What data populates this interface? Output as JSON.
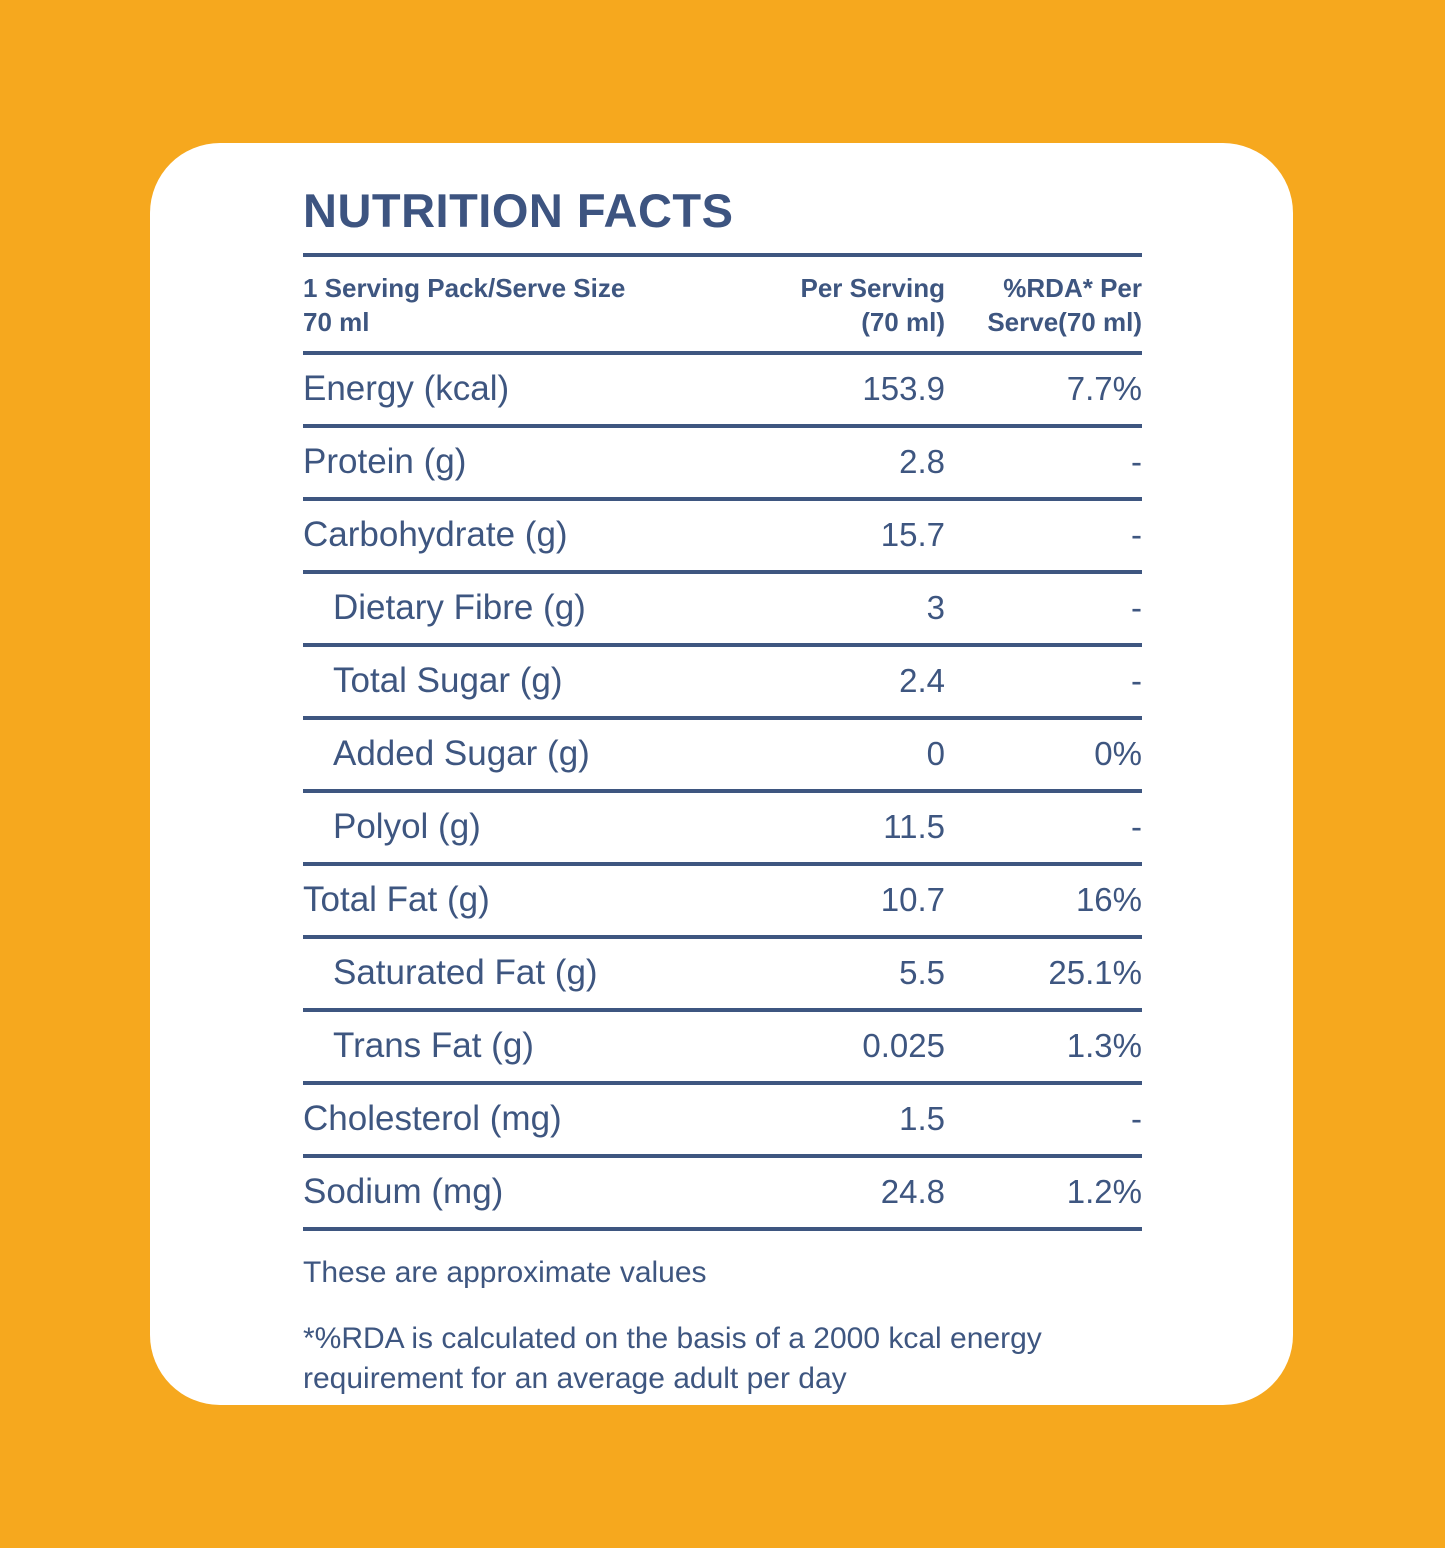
{
  "colors": {
    "background": "#F6A81E",
    "card": "#FFFFFF",
    "text": "#3E5680"
  },
  "title": "NUTRITION FACTS",
  "table": {
    "header": {
      "serving_info_line1": "1 Serving Pack/Serve Size",
      "serving_info_line2": "70 ml",
      "per_serving_line1": "Per Serving",
      "per_serving_line2": "(70 ml)",
      "rda_line1": "%RDA* Per",
      "rda_line2": "Serve(70 ml)"
    },
    "rows": [
      {
        "label": "Energy (kcal)",
        "per_serving": "153.9",
        "rda": "7.7%",
        "indent": false
      },
      {
        "label": "Protein (g)",
        "per_serving": "2.8",
        "rda": "-",
        "indent": false
      },
      {
        "label": "Carbohydrate (g)",
        "per_serving": "15.7",
        "rda": "-",
        "indent": false
      },
      {
        "label": "Dietary Fibre (g)",
        "per_serving": "3",
        "rda": "-",
        "indent": true
      },
      {
        "label": "Total Sugar (g)",
        "per_serving": "2.4",
        "rda": "-",
        "indent": true
      },
      {
        "label": "Added Sugar (g)",
        "per_serving": "0",
        "rda": "0%",
        "indent": true
      },
      {
        "label": "Polyol (g)",
        "per_serving": "11.5",
        "rda": "-",
        "indent": true
      },
      {
        "label": "Total Fat (g)",
        "per_serving": "10.7",
        "rda": "16%",
        "indent": false
      },
      {
        "label": "Saturated Fat (g)",
        "per_serving": "5.5",
        "rda": "25.1%",
        "indent": true
      },
      {
        "label": "Trans Fat (g)",
        "per_serving": "0.025",
        "rda": "1.3%",
        "indent": true
      },
      {
        "label": "Cholesterol (mg)",
        "per_serving": "1.5",
        "rda": "-",
        "indent": false
      },
      {
        "label": "Sodium (mg)",
        "per_serving": "24.8",
        "rda": "1.2%",
        "indent": false
      }
    ]
  },
  "footnotes": {
    "approximate": "These are approximate values",
    "rda": "*%RDA is calculated on the basis of a 2000 kcal energy requirement for an average adult per day"
  }
}
